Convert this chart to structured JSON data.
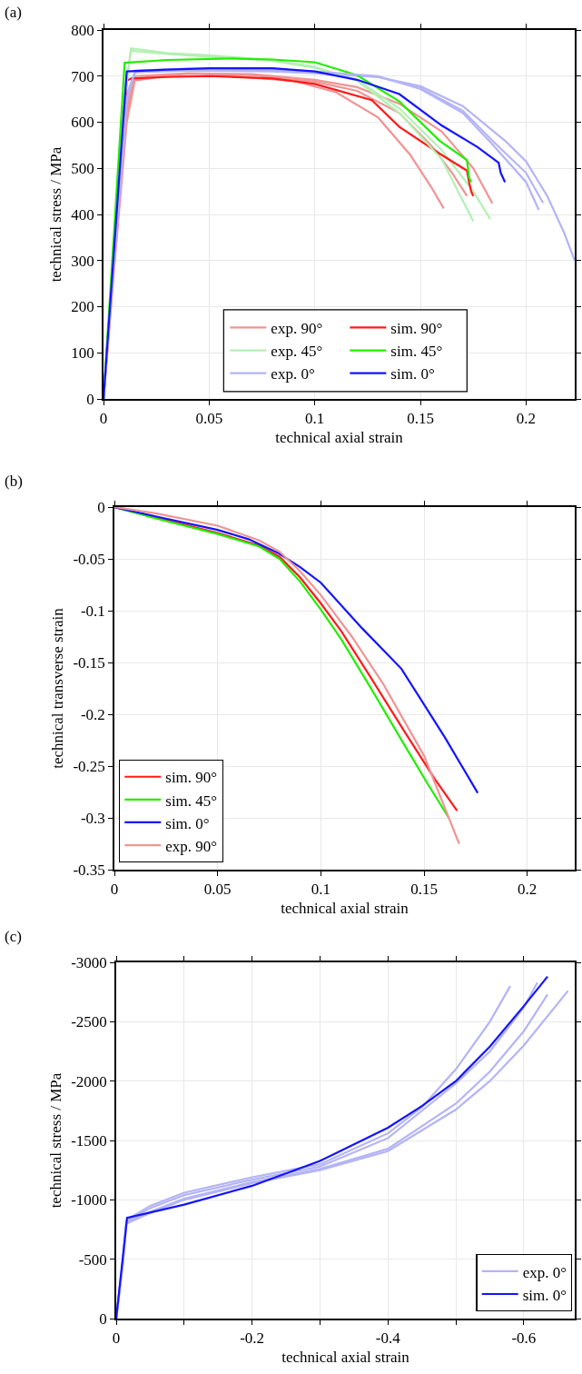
{
  "chart_data": [
    {
      "type": "line",
      "title": "(a)",
      "xlabel": "technical axial strain",
      "ylabel": "technical stress / MPa",
      "xlim": [
        0,
        0.223
      ],
      "ylim": [
        0,
        800
      ],
      "xticks": [
        0,
        0.05,
        0.1,
        0.15,
        0.2
      ],
      "yticks": [
        0,
        100,
        200,
        300,
        400,
        500,
        600,
        700,
        800
      ],
      "grid": true,
      "legend": "bottom",
      "series": [
        {
          "name": "exp. 90°",
          "color": "#f09494",
          "x": [
            0,
            0.005,
            0.01,
            0.014,
            0.03,
            0.06,
            0.09,
            0.11,
            0.13,
            0.145,
            0.155,
            0.161
          ],
          "values": [
            0,
            300,
            600,
            690,
            700,
            700,
            690,
            665,
            610,
            530,
            460,
            413
          ]
        },
        {
          "name": "sim. 90°",
          "color": "#ff1a1a",
          "x": [
            0,
            0.004,
            0.011,
            0.013,
            0.03,
            0.05,
            0.08,
            0.1,
            0.127,
            0.14,
            0.159,
            0.172,
            0.173,
            0.174,
            0.175
          ],
          "values": [
            0,
            250,
            690,
            695,
            698,
            700,
            695,
            683,
            648,
            590,
            532,
            495,
            470,
            450,
            440
          ]
        },
        {
          "name": "exp. 45°",
          "color": "#b4f0b4",
          "x": [
            0,
            0.005,
            0.01,
            0.013,
            0.03,
            0.05,
            0.08,
            0.1,
            0.12,
            0.14,
            0.16,
            0.175
          ],
          "values": [
            0,
            320,
            650,
            760,
            750,
            745,
            735,
            720,
            690,
            620,
            520,
            385
          ]
        },
        {
          "name": "sim. 45°",
          "color": "#22ee00",
          "x": [
            0,
            0.004,
            0.01,
            0.03,
            0.06,
            0.08,
            0.1,
            0.12,
            0.14,
            0.159,
            0.172,
            0.173,
            0.174
          ],
          "values": [
            0,
            290,
            729,
            735,
            738,
            736,
            730,
            702,
            645,
            560,
            518,
            480,
            470
          ]
        },
        {
          "name": "exp. 0°",
          "color": "#b4b4f6",
          "x": [
            0,
            0.005,
            0.011,
            0.015,
            0.04,
            0.08,
            0.1,
            0.13,
            0.15,
            0.17,
            0.184,
            0.2,
            0.206
          ],
          "values": [
            0,
            300,
            650,
            712,
            716,
            714,
            710,
            700,
            672,
            620,
            552,
            470,
            410
          ]
        },
        {
          "name": "sim. 0°",
          "color": "#1414ff",
          "x": [
            0,
            0.004,
            0.011,
            0.03,
            0.05,
            0.08,
            0.1,
            0.12,
            0.14,
            0.16,
            0.177,
            0.187,
            0.188,
            0.19
          ],
          "values": [
            0,
            260,
            710,
            714,
            717,
            717,
            710,
            692,
            661,
            593,
            546,
            512,
            490,
            470
          ]
        },
        {
          "color": "#f09494",
          "x": [
            0,
            0.005,
            0.011,
            0.015,
            0.04,
            0.07,
            0.1,
            0.12,
            0.14,
            0.155,
            0.165,
            0.172
          ],
          "values": [
            0,
            280,
            600,
            695,
            705,
            702,
            688,
            668,
            620,
            550,
            490,
            440
          ]
        },
        {
          "color": "#f09494",
          "x": [
            0,
            0.005,
            0.011,
            0.015,
            0.04,
            0.07,
            0.1,
            0.12,
            0.14,
            0.16,
            0.175,
            0.184
          ],
          "values": [
            0,
            290,
            620,
            700,
            706,
            704,
            692,
            676,
            640,
            580,
            500,
            424
          ]
        },
        {
          "color": "#b4f0b4",
          "x": [
            0,
            0.005,
            0.01,
            0.013,
            0.03,
            0.05,
            0.08,
            0.1,
            0.12,
            0.14,
            0.16,
            0.175,
            0.183
          ],
          "values": [
            0,
            330,
            660,
            755,
            748,
            742,
            733,
            718,
            692,
            630,
            540,
            450,
            390
          ]
        },
        {
          "color": "#b4b4f6",
          "x": [
            0,
            0.005,
            0.011,
            0.015,
            0.04,
            0.08,
            0.1,
            0.13,
            0.15,
            0.17,
            0.184,
            0.2,
            0.208
          ],
          "values": [
            0,
            310,
            660,
            710,
            714,
            712,
            708,
            698,
            674,
            625,
            560,
            490,
            425
          ]
        },
        {
          "color": "#b4b4f6",
          "x": [
            0,
            0.005,
            0.011,
            0.015,
            0.04,
            0.08,
            0.1,
            0.13,
            0.15,
            0.17,
            0.19,
            0.2,
            0.21,
            0.218,
            0.223
          ],
          "values": [
            0,
            300,
            640,
            708,
            712,
            710,
            706,
            698,
            678,
            635,
            560,
            515,
            440,
            360,
            300
          ]
        }
      ]
    },
    {
      "type": "line",
      "title": "(b)",
      "xlabel": "technical axial strain",
      "ylabel": "technical transverse strain",
      "xlim": [
        0,
        0.223
      ],
      "ylim": [
        -0.35,
        0
      ],
      "xticks": [
        0,
        0.05,
        0.1,
        0.15,
        0.2
      ],
      "yticks": [
        0,
        -0.05,
        -0.1,
        -0.15,
        -0.2,
        -0.25,
        -0.3,
        -0.35
      ],
      "grid": true,
      "legend": "bottom left",
      "series": [
        {
          "name": "sim. 90°",
          "color": "#ff1a1a",
          "x": [
            0,
            0.02,
            0.05,
            0.07,
            0.08,
            0.09,
            0.1,
            0.11,
            0.124,
            0.14,
            0.155,
            0.166
          ],
          "values": [
            0,
            -0.01,
            -0.025,
            -0.037,
            -0.048,
            -0.068,
            -0.093,
            -0.12,
            -0.164,
            -0.215,
            -0.262,
            -0.293
          ]
        },
        {
          "name": "sim. 45°",
          "color": "#22ee00",
          "x": [
            0,
            0.02,
            0.05,
            0.07,
            0.08,
            0.09,
            0.1,
            0.11,
            0.124,
            0.14,
            0.152,
            0.162
          ],
          "values": [
            0,
            -0.011,
            -0.026,
            -0.038,
            -0.05,
            -0.072,
            -0.099,
            -0.128,
            -0.174,
            -0.228,
            -0.268,
            -0.3
          ]
        },
        {
          "name": "sim. 0°",
          "color": "#1414ff",
          "x": [
            0,
            0.02,
            0.05,
            0.065,
            0.079,
            0.09,
            0.1,
            0.12,
            0.139,
            0.16,
            0.176
          ],
          "values": [
            0,
            -0.009,
            -0.022,
            -0.031,
            -0.044,
            -0.058,
            -0.073,
            -0.117,
            -0.156,
            -0.222,
            -0.276
          ]
        },
        {
          "name": "exp. 90°",
          "color": "#f09494",
          "x": [
            0,
            0.02,
            0.05,
            0.07,
            0.08,
            0.09,
            0.1,
            0.115,
            0.13,
            0.15,
            0.16,
            0.167
          ],
          "values": [
            0,
            -0.006,
            -0.018,
            -0.032,
            -0.043,
            -0.062,
            -0.085,
            -0.125,
            -0.17,
            -0.24,
            -0.29,
            -0.325
          ]
        }
      ]
    },
    {
      "type": "line",
      "title": "(c)",
      "xlabel": "technical axial strain",
      "ylabel": "technical stress / MPa",
      "xlim": [
        0,
        -0.675
      ],
      "ylim": [
        0,
        -3000
      ],
      "xticks": [
        0,
        {
          "value": -0.1,
          "label": null
        },
        -0.2,
        {
          "value": -0.3,
          "label": null
        },
        -0.4,
        {
          "value": -0.5,
          "label": null
        },
        -0.6
      ],
      "yticks": [
        0,
        -500,
        -1000,
        -1500,
        -2000,
        -2500,
        -3000
      ],
      "grid": true,
      "legend": "bottom right",
      "series": [
        {
          "name": "exp. 0°",
          "color": "#b4b4f6",
          "x": [
            0,
            -0.01,
            -0.015,
            -0.05,
            -0.1,
            -0.2,
            -0.3,
            -0.4,
            -0.45,
            -0.5,
            -0.55,
            -0.58
          ],
          "values": [
            0,
            -500,
            -830,
            -950,
            -1060,
            -1190,
            -1300,
            -1560,
            -1780,
            -2100,
            -2500,
            -2800
          ]
        },
        {
          "name": "sim. 0°",
          "color": "#1414ff",
          "x": [
            0,
            -0.016,
            -0.1,
            -0.2,
            -0.3,
            -0.4,
            -0.45,
            -0.5,
            -0.55,
            -0.6,
            -0.635
          ],
          "values": [
            0,
            -849,
            -960,
            -1118,
            -1327,
            -1607,
            -1790,
            -2000,
            -2290,
            -2632,
            -2880
          ]
        },
        {
          "color": "#b4b4f6",
          "x": [
            0,
            -0.01,
            -0.015,
            -0.05,
            -0.1,
            -0.2,
            -0.3,
            -0.4,
            -0.5,
            -0.55,
            -0.6,
            -0.62
          ],
          "values": [
            0,
            -500,
            -820,
            -930,
            -1040,
            -1170,
            -1280,
            -1520,
            -1980,
            -2250,
            -2620,
            -2830
          ]
        },
        {
          "color": "#b4b4f6",
          "x": [
            0,
            -0.01,
            -0.015,
            -0.05,
            -0.1,
            -0.2,
            -0.3,
            -0.4,
            -0.5,
            -0.55,
            -0.6,
            -0.635
          ],
          "values": [
            0,
            -480,
            -810,
            -900,
            -1010,
            -1150,
            -1260,
            -1430,
            -1810,
            -2080,
            -2420,
            -2730
          ]
        },
        {
          "color": "#b4b4f6",
          "x": [
            0,
            -0.01,
            -0.015,
            -0.05,
            -0.1,
            -0.2,
            -0.3,
            -0.4,
            -0.5,
            -0.55,
            -0.6,
            -0.665
          ],
          "values": [
            0,
            -470,
            -800,
            -890,
            -1000,
            -1140,
            -1250,
            -1410,
            -1760,
            -2000,
            -2300,
            -2760
          ]
        }
      ]
    }
  ]
}
